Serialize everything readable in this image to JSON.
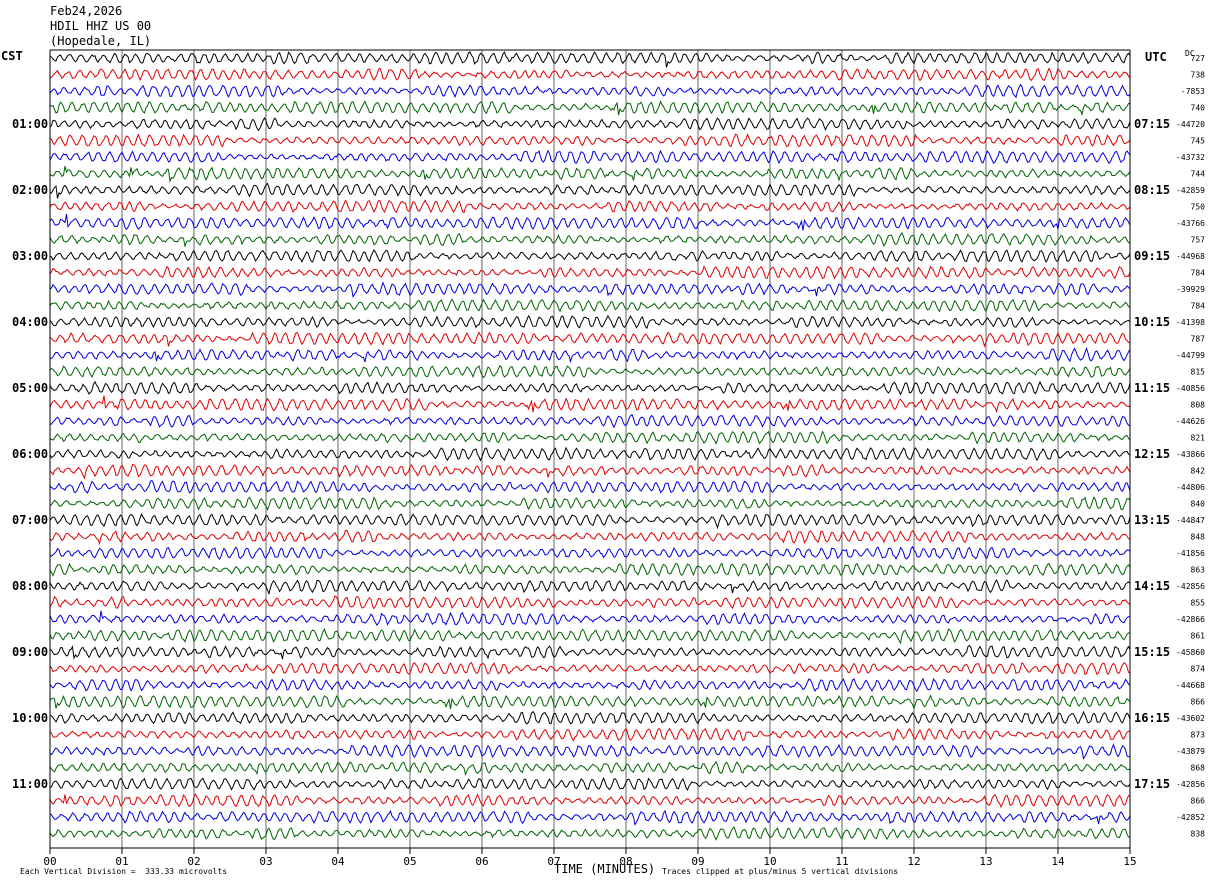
{
  "header": {
    "date": "Feb24,2026",
    "station": "HDIL HHZ US 00",
    "location": "(Hopedale, IL)"
  },
  "left_zone": "CST",
  "right_zone": "UTC",
  "dc_label": "DC",
  "footer": {
    "scale_note": "Each Vertical Division =  333.33 microvolts",
    "clip_note": "Traces clipped at plus/minus 5 vertical divisions"
  },
  "colors": {
    "trace_cycle": [
      "#000000",
      "#dd0000",
      "#0000dd",
      "#006400"
    ],
    "grid": "#000000",
    "background": "#ffffff"
  },
  "chart_data": {
    "type": "line",
    "subtype": "helicorder",
    "xlabel": "TIME (MINUTES)",
    "x_ticks": [
      "00",
      "01",
      "02",
      "03",
      "04",
      "05",
      "06",
      "07",
      "08",
      "09",
      "10",
      "11",
      "12",
      "13",
      "14",
      "15"
    ],
    "xlim": [
      0,
      15
    ],
    "left_hour_labels": [
      "01:00",
      "02:00",
      "03:00",
      "04:00",
      "05:00",
      "06:00",
      "07:00",
      "08:00",
      "09:00",
      "10:00",
      "11:00"
    ],
    "right_hour_labels": [
      "07:15",
      "08:15",
      "09:15",
      "10:15",
      "11:15",
      "12:15",
      "13:15",
      "14:15",
      "15:15",
      "16:15",
      "17:15"
    ],
    "hour_label_row_start": 4,
    "rows_per_hour": 4,
    "row_count": 48,
    "dc_values": [
      "727",
      "738",
      "-7853",
      "740",
      "-44720",
      "745",
      "-43732",
      "744",
      "-42859",
      "750",
      "-43766",
      "757",
      "-44968",
      "784",
      "-39929",
      "784",
      "-41398",
      "787",
      "-44799",
      "815",
      "-40856",
      "808",
      "-44626",
      "821",
      "-43866",
      "842",
      "-44806",
      "840",
      "-44847",
      "848",
      "-41856",
      "863",
      "-42856",
      "855",
      "-42866",
      "861",
      "-45860",
      "874",
      "-44668",
      "866",
      "-43602",
      "873",
      "-43879",
      "868",
      "-42856",
      "866",
      "-42852",
      "838"
    ]
  }
}
